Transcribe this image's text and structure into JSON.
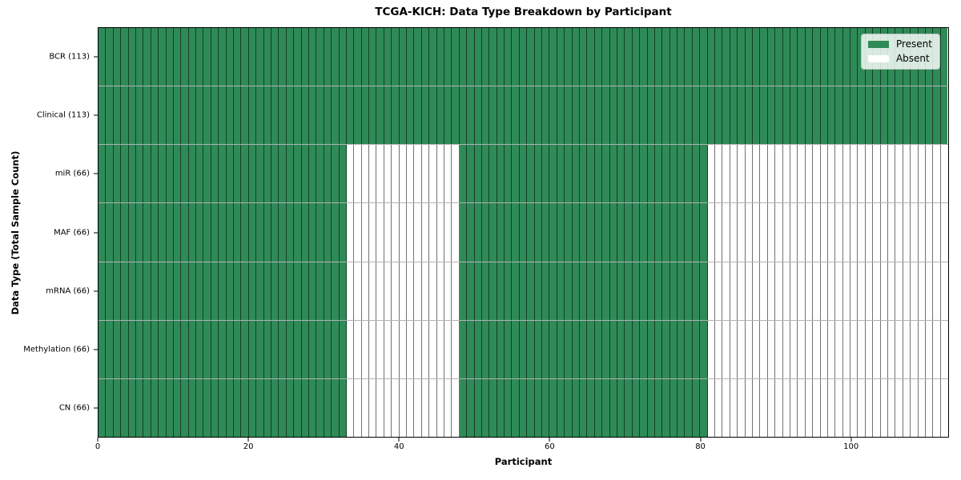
{
  "chart_data": {
    "type": "heatmap",
    "title": "TCGA-KICH: Data Type Breakdown by Participant",
    "xlabel": "Participant",
    "ylabel": "Data Type (Total Sample Count)",
    "xlim": [
      0,
      113
    ],
    "x_ticks": [
      0,
      20,
      40,
      60,
      80,
      100
    ],
    "n_participants": 113,
    "n_rows": 7,
    "legend_position": "upper right",
    "legend": [
      {
        "label": "Present",
        "color": "#2E8B57"
      },
      {
        "label": "Absent",
        "color": "#FFFFFF"
      }
    ],
    "rows": [
      {
        "label": "BCR (113)",
        "data_type": "BCR",
        "total_samples": 113,
        "present_ranges": [
          [
            0,
            113
          ]
        ]
      },
      {
        "label": "Clinical (113)",
        "data_type": "Clinical",
        "total_samples": 113,
        "present_ranges": [
          [
            0,
            113
          ]
        ]
      },
      {
        "label": "miR (66)",
        "data_type": "miR",
        "total_samples": 66,
        "present_ranges": [
          [
            0,
            33
          ],
          [
            48,
            81
          ]
        ]
      },
      {
        "label": "MAF (66)",
        "data_type": "MAF",
        "total_samples": 66,
        "present_ranges": [
          [
            0,
            33
          ],
          [
            48,
            81
          ]
        ]
      },
      {
        "label": "mRNA (66)",
        "data_type": "mRNA",
        "total_samples": 66,
        "present_ranges": [
          [
            0,
            33
          ],
          [
            48,
            81
          ]
        ]
      },
      {
        "label": "Methylation (66)",
        "data_type": "Methylation",
        "total_samples": 66,
        "present_ranges": [
          [
            0,
            33
          ],
          [
            48,
            81
          ]
        ]
      },
      {
        "label": "CN (66)",
        "data_type": "CN",
        "total_samples": 66,
        "present_ranges": [
          [
            0,
            33
          ],
          [
            48,
            81
          ]
        ]
      }
    ],
    "colors": {
      "present": "#2E8B57",
      "absent": "#FFFFFF",
      "cell_edge": "rgba(0,0,0,0.55)",
      "row_edge": "rgba(0,0,0,0.30)",
      "plot_border": "#000000"
    }
  }
}
